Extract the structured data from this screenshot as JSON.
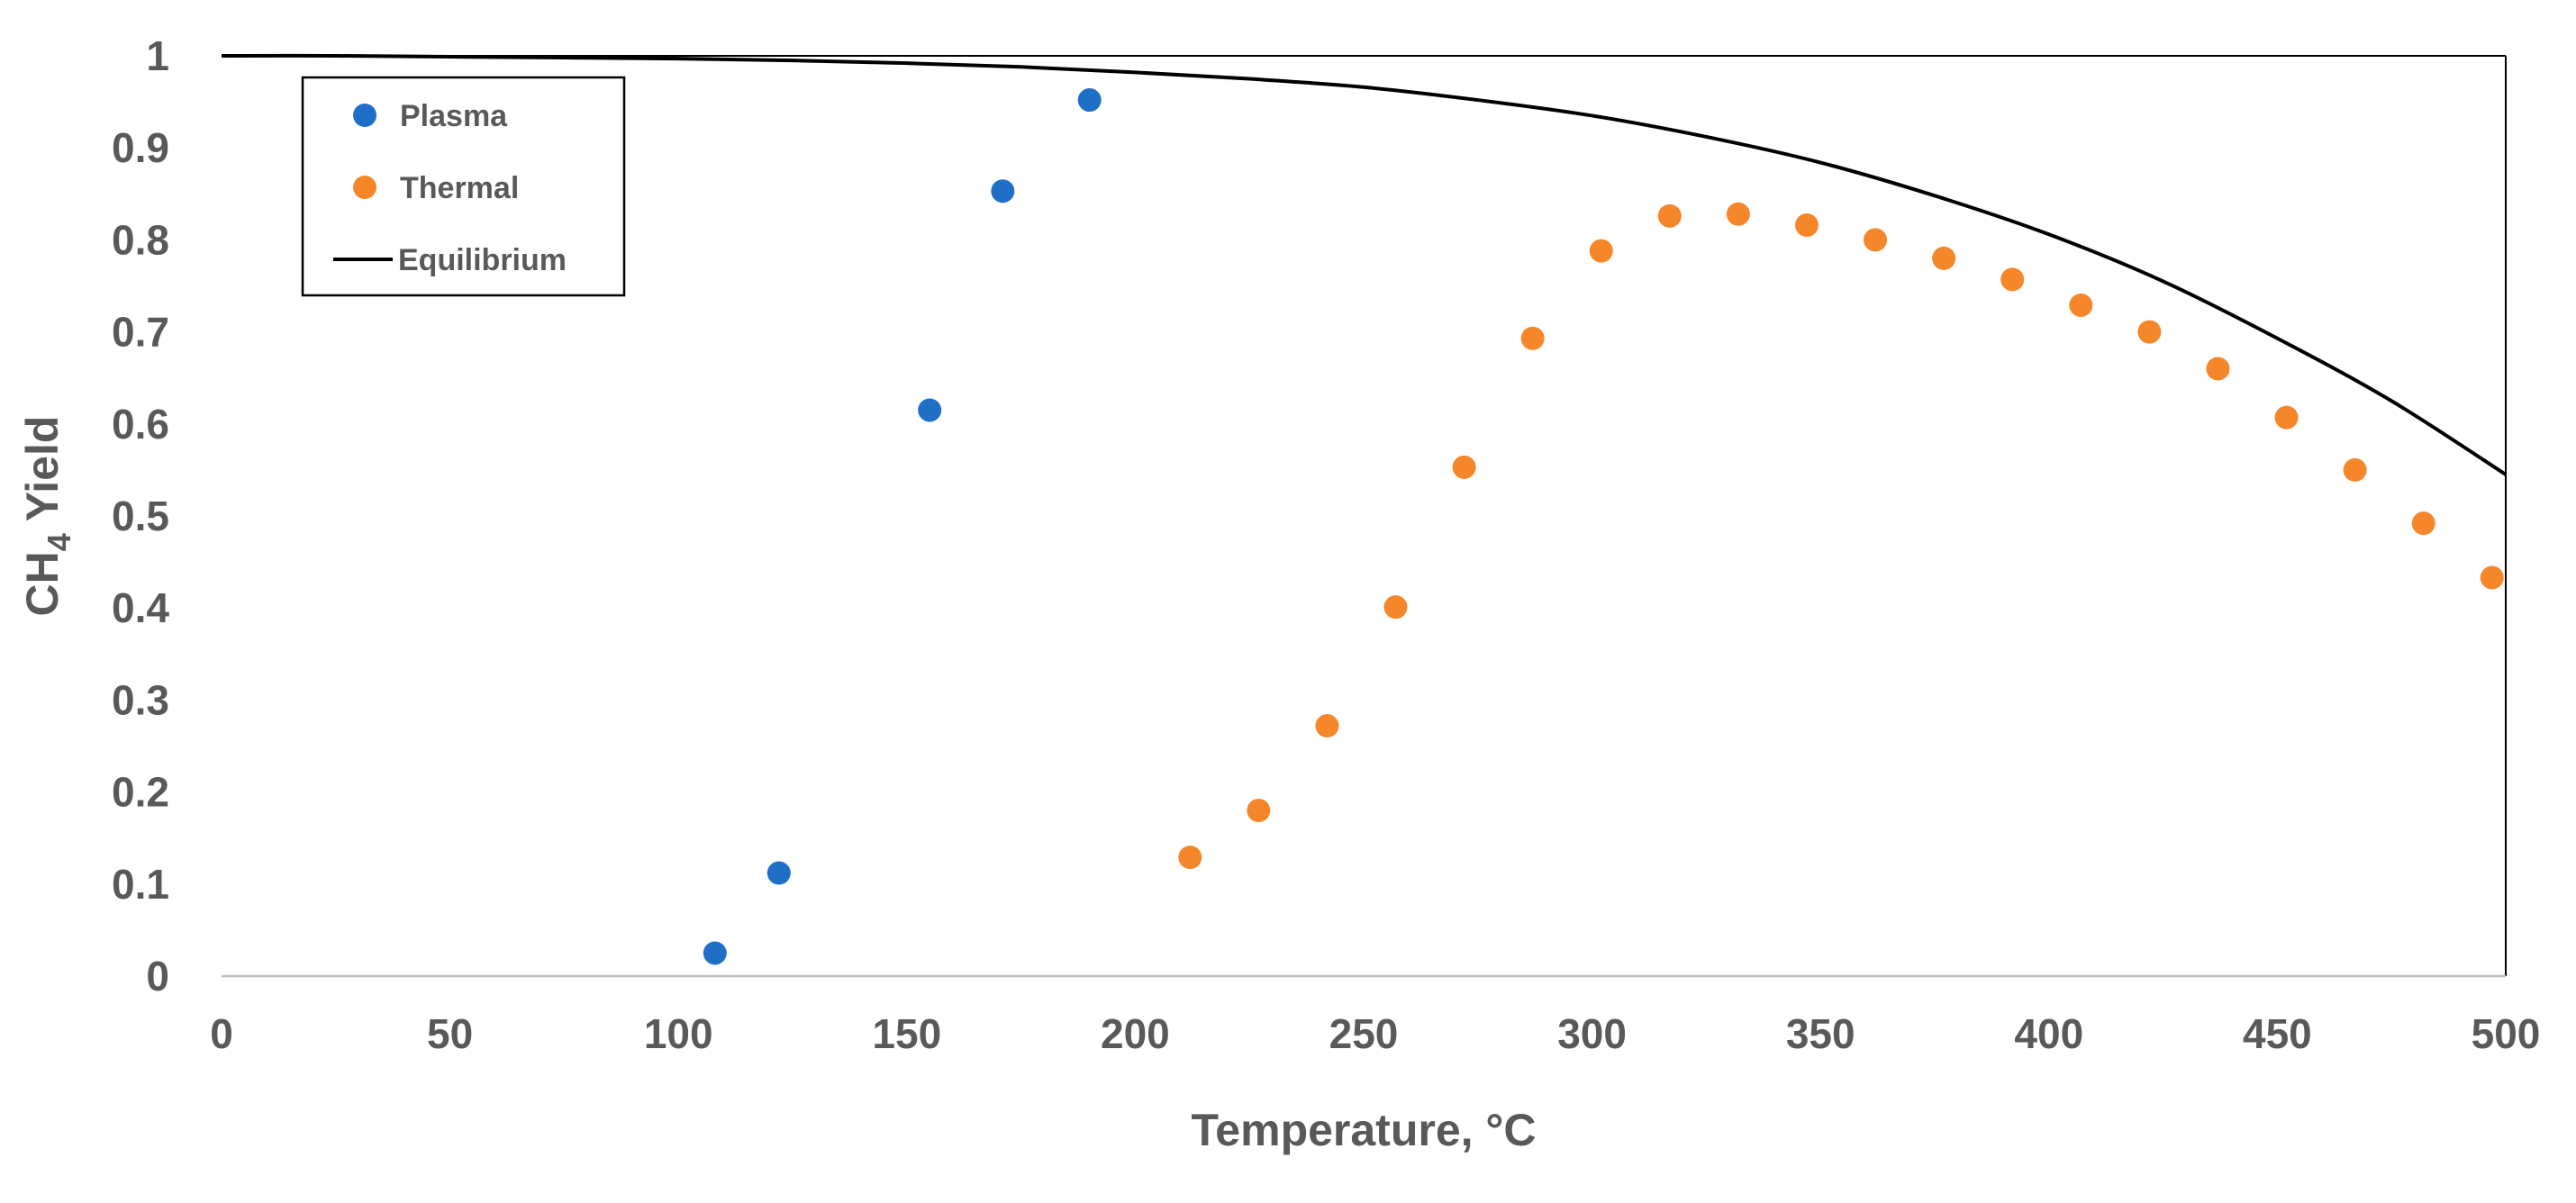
{
  "chart_data": {
    "type": "scatter",
    "title": "",
    "xlabel": "Temperature, °C",
    "ylabel": {
      "prefix": "CH",
      "subscript": "4",
      "suffix": " Yield"
    },
    "xlim": [
      0,
      500
    ],
    "ylim": [
      0,
      1
    ],
    "x_ticks": [
      0,
      50,
      100,
      150,
      200,
      250,
      300,
      350,
      400,
      450,
      500
    ],
    "y_ticks": [
      0,
      0.1,
      0.2,
      0.3,
      0.4,
      0.5,
      0.6,
      0.7,
      0.8,
      0.9,
      1
    ],
    "y_tick_labels": [
      "0",
      "0.1",
      "0.2",
      "0.3",
      "0.4",
      "0.5",
      "0.6",
      "0.7",
      "0.8",
      "0.9",
      "1"
    ],
    "grid": false,
    "legend_position": "top-left",
    "series": [
      {
        "name": "Plasma",
        "type": "scatter",
        "color": "#1f6fc6",
        "x": [
          108,
          122,
          155,
          171,
          190
        ],
        "y": [
          0.025,
          0.112,
          0.615,
          0.853,
          0.952
        ]
      },
      {
        "name": "Thermal",
        "type": "scatter",
        "color": "#f5862a",
        "x": [
          212,
          227,
          242,
          257,
          272,
          287,
          302,
          317,
          332,
          347,
          362,
          377,
          392,
          407,
          422,
          437,
          452,
          467,
          482,
          497
        ],
        "y": [
          0.129,
          0.18,
          0.272,
          0.401,
          0.553,
          0.693,
          0.788,
          0.826,
          0.828,
          0.816,
          0.8,
          0.78,
          0.757,
          0.729,
          0.7,
          0.66,
          0.607,
          0.55,
          0.492,
          0.433
        ]
      },
      {
        "name": "Equilibrium",
        "type": "line",
        "color": "#000000",
        "x": [
          0,
          25,
          50,
          75,
          100,
          125,
          150,
          175,
          200,
          225,
          250,
          275,
          300,
          325,
          350,
          375,
          400,
          425,
          450,
          475,
          500
        ],
        "y": [
          1.0,
          1.0,
          0.999,
          0.998,
          0.997,
          0.995,
          0.992,
          0.988,
          0.982,
          0.975,
          0.966,
          0.952,
          0.935,
          0.912,
          0.884,
          0.848,
          0.806,
          0.755,
          0.693,
          0.625,
          0.545
        ]
      }
    ]
  }
}
